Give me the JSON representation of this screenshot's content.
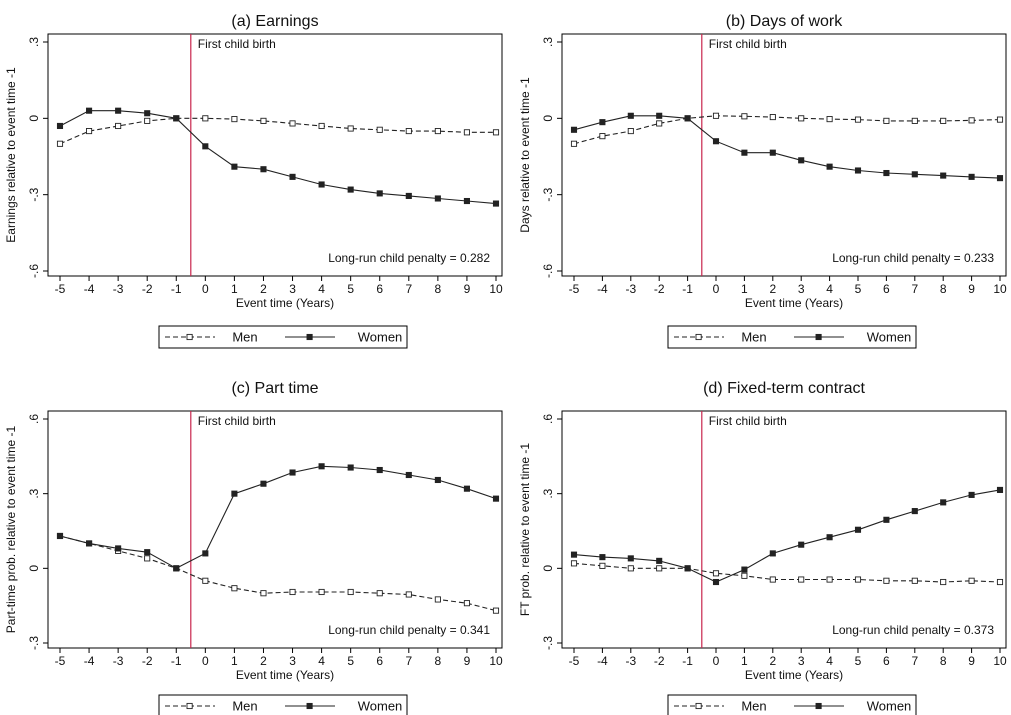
{
  "figure": {
    "x_label": "Event time (Years)",
    "event_label": "First child birth",
    "colors": {
      "axis": "#000000",
      "event_line": "#c8254d",
      "series": "#222222"
    },
    "legend": [
      {
        "name": "Men",
        "style": "dashed-hollow-square"
      },
      {
        "name": "Women",
        "style": "solid-filled-square"
      }
    ]
  },
  "chart_data": [
    {
      "type": "line",
      "title": "(a) Earnings",
      "ylabel": "Earnings relative to event time -1",
      "x": [
        -5,
        -4,
        -3,
        -2,
        -1,
        0,
        1,
        2,
        3,
        4,
        5,
        6,
        7,
        8,
        9,
        10
      ],
      "ylim": [
        -0.6,
        0.3
      ],
      "yticks": [
        ".3",
        "0",
        "-.3",
        "-.6"
      ],
      "event_line_x": -0.5,
      "legend_position": "bottom",
      "annotation": "Long-run child penalty = 0.282",
      "series": [
        {
          "name": "Men",
          "values": [
            -0.1,
            -0.05,
            -0.03,
            -0.01,
            0.0,
            0.0,
            -0.003,
            -0.01,
            -0.02,
            -0.03,
            -0.04,
            -0.045,
            -0.05,
            -0.05,
            -0.055,
            -0.055
          ]
        },
        {
          "name": "Women",
          "values": [
            -0.03,
            0.03,
            0.03,
            0.02,
            0.0,
            -0.11,
            -0.19,
            -0.2,
            -0.23,
            -0.26,
            -0.28,
            -0.295,
            -0.305,
            -0.315,
            -0.325,
            -0.335
          ]
        }
      ]
    },
    {
      "type": "line",
      "title": "(b) Days of work",
      "ylabel": "Days relative to event time -1",
      "x": [
        -5,
        -4,
        -3,
        -2,
        -1,
        0,
        1,
        2,
        3,
        4,
        5,
        6,
        7,
        8,
        9,
        10
      ],
      "ylim": [
        -0.6,
        0.3
      ],
      "yticks": [
        ".3",
        "0",
        "-.3",
        "-.6"
      ],
      "event_line_x": -0.5,
      "legend_position": "bottom",
      "annotation": "Long-run child penalty = 0.233",
      "series": [
        {
          "name": "Men",
          "values": [
            -0.1,
            -0.07,
            -0.05,
            -0.02,
            0.0,
            0.01,
            0.008,
            0.005,
            0.0,
            -0.003,
            -0.005,
            -0.01,
            -0.01,
            -0.01,
            -0.008,
            -0.005
          ]
        },
        {
          "name": "Women",
          "values": [
            -0.045,
            -0.015,
            0.01,
            0.01,
            0.0,
            -0.09,
            -0.135,
            -0.135,
            -0.165,
            -0.19,
            -0.205,
            -0.215,
            -0.22,
            -0.225,
            -0.23,
            -0.235
          ]
        }
      ]
    },
    {
      "type": "line",
      "title": "(c) Part time",
      "ylabel": "Part-time prob. relative to event time -1",
      "x": [
        -5,
        -4,
        -3,
        -2,
        -1,
        0,
        1,
        2,
        3,
        4,
        5,
        6,
        7,
        8,
        9,
        10
      ],
      "ylim": [
        -0.3,
        0.6
      ],
      "yticks": [
        ".6",
        ".3",
        "0",
        "-.3"
      ],
      "event_line_x": -0.5,
      "legend_position": "bottom",
      "annotation": "Long-run child penalty = 0.341",
      "series": [
        {
          "name": "Men",
          "values": [
            0.13,
            0.1,
            0.07,
            0.04,
            0.0,
            -0.05,
            -0.08,
            -0.1,
            -0.095,
            -0.095,
            -0.095,
            -0.1,
            -0.105,
            -0.125,
            -0.14,
            -0.17
          ]
        },
        {
          "name": "Women",
          "values": [
            0.13,
            0.1,
            0.08,
            0.065,
            0.0,
            0.06,
            0.3,
            0.34,
            0.385,
            0.41,
            0.405,
            0.395,
            0.375,
            0.355,
            0.32,
            0.28
          ]
        }
      ]
    },
    {
      "type": "line",
      "title": "(d) Fixed-term contract",
      "ylabel": "FT prob. relative to event time -1",
      "x": [
        -5,
        -4,
        -3,
        -2,
        -1,
        0,
        1,
        2,
        3,
        4,
        5,
        6,
        7,
        8,
        9,
        10
      ],
      "ylim": [
        -0.3,
        0.6
      ],
      "yticks": [
        ".6",
        ".3",
        "0",
        "-.3"
      ],
      "event_line_x": -0.5,
      "legend_position": "bottom",
      "annotation": "Long-run child penalty = 0.373",
      "series": [
        {
          "name": "Men",
          "values": [
            0.02,
            0.01,
            0.0,
            0.0,
            0.0,
            -0.02,
            -0.03,
            -0.045,
            -0.045,
            -0.045,
            -0.045,
            -0.05,
            -0.05,
            -0.055,
            -0.05,
            -0.055
          ]
        },
        {
          "name": "Women",
          "values": [
            0.055,
            0.045,
            0.04,
            0.03,
            0.0,
            -0.055,
            -0.005,
            0.06,
            0.095,
            0.125,
            0.155,
            0.195,
            0.23,
            0.265,
            0.295,
            0.315
          ]
        }
      ]
    }
  ]
}
